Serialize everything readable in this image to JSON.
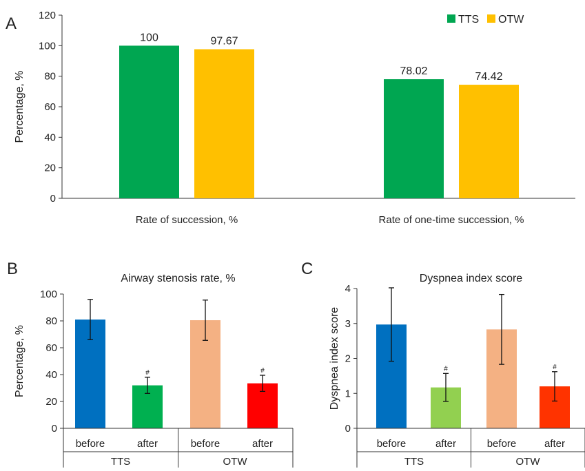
{
  "figure": {
    "panel_labels": [
      "A",
      "B",
      "C"
    ]
  },
  "chart_data": [
    {
      "panel": "A",
      "type": "bar",
      "title": "",
      "xlabel": "",
      "ylabel": "Percentage, %",
      "ylim": [
        0,
        120
      ],
      "yticks": [
        0,
        20,
        40,
        60,
        80,
        100,
        120
      ],
      "categories": [
        "Rate of succession, %",
        "Rate of one-time succession, %"
      ],
      "series": [
        {
          "name": "TTS",
          "color": "#00a651",
          "values": [
            100,
            78.02
          ],
          "labels": [
            "100",
            "78.02"
          ]
        },
        {
          "name": "OTW",
          "color": "#ffc000",
          "values": [
            97.67,
            74.42
          ],
          "labels": [
            "97.67",
            "74.42"
          ]
        }
      ],
      "legend": "top-right",
      "grid": false
    },
    {
      "panel": "B",
      "type": "bar",
      "title": "Airway stenosis rate, %",
      "xlabel": "",
      "ylabel": "Percentage, %",
      "ylim": [
        0,
        100
      ],
      "yticks": [
        0,
        20,
        40,
        60,
        80,
        100
      ],
      "groups": [
        "TTS",
        "OTW"
      ],
      "bars": [
        {
          "label": "before",
          "group": "TTS",
          "value": 81,
          "error": 15,
          "color": "#0070c0",
          "marker": ""
        },
        {
          "label": "after",
          "group": "TTS",
          "value": 32,
          "error": 6,
          "color": "#00b050",
          "marker": "#"
        },
        {
          "label": "before",
          "group": "OTW",
          "value": 80.5,
          "error": 15,
          "color": "#f4b183",
          "marker": ""
        },
        {
          "label": "after",
          "group": "OTW",
          "value": 33.5,
          "error": 6,
          "color": "#ff0000",
          "marker": "#"
        }
      ],
      "grid": false
    },
    {
      "panel": "C",
      "type": "bar",
      "title": "Dyspnea index score",
      "xlabel": "",
      "ylabel": "Dyspnea index score",
      "ylim": [
        0,
        4
      ],
      "yticks": [
        0,
        1,
        2,
        3,
        4
      ],
      "groups": [
        "TTS",
        "OTW"
      ],
      "bars": [
        {
          "label": "before",
          "group": "TTS",
          "value": 2.97,
          "error": 1.05,
          "color": "#0070c0",
          "marker": ""
        },
        {
          "label": "after",
          "group": "TTS",
          "value": 1.17,
          "error": 0.4,
          "color": "#92d050",
          "marker": "#"
        },
        {
          "label": "before",
          "group": "OTW",
          "value": 2.83,
          "error": 1.0,
          "color": "#f4b183",
          "marker": ""
        },
        {
          "label": "after",
          "group": "OTW",
          "value": 1.2,
          "error": 0.42,
          "color": "#ff3300",
          "marker": "#"
        }
      ],
      "grid": false
    }
  ]
}
